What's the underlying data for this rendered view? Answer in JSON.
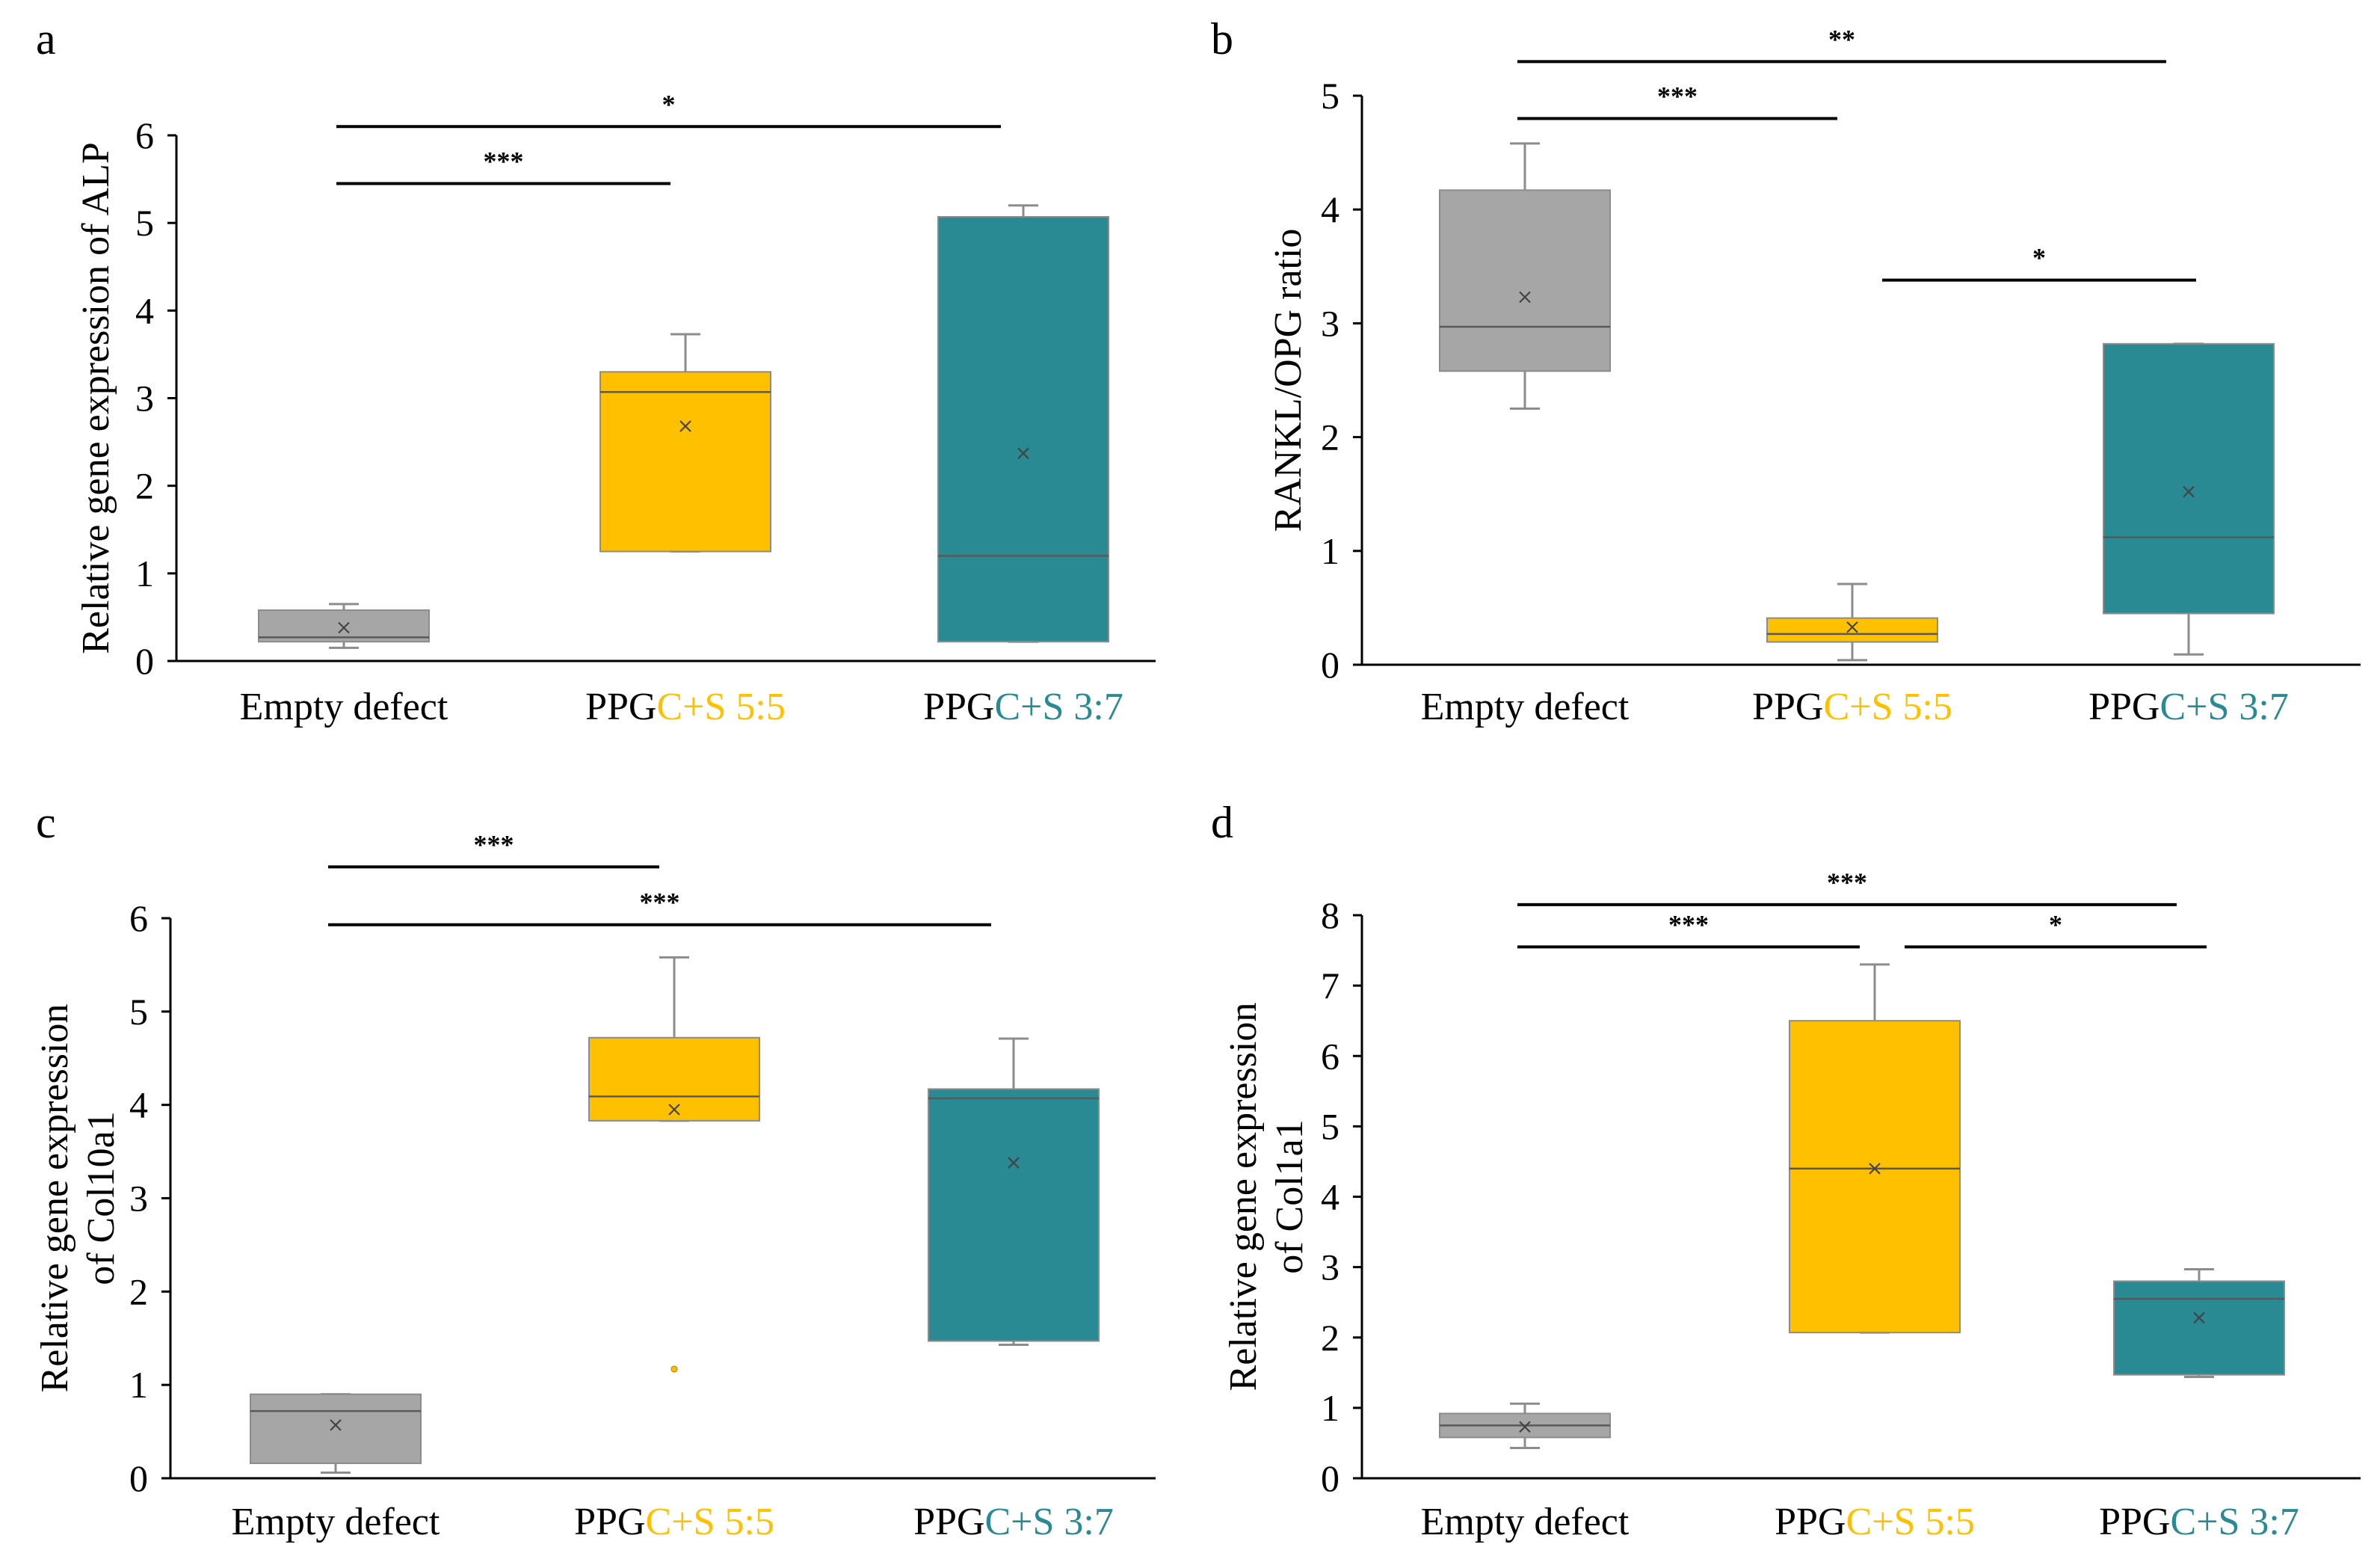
{
  "colors": {
    "empty_defect": "#A6A6A6",
    "ppg_55": "#FFC000",
    "ppg_37": "#298A93",
    "axis": "#000000",
    "whisker": "#8C8C8C",
    "median": "#595959"
  },
  "chart_data": [
    {
      "panel": "a",
      "type": "box",
      "ylabel_lines": [
        "Relative gene expression of ALP"
      ],
      "ylim": [
        0,
        6
      ],
      "yticks": [
        0,
        1,
        2,
        3,
        4,
        5,
        6
      ],
      "categories": [
        {
          "prefix": "Empty defect",
          "suffix": "",
          "color": "empty_defect"
        },
        {
          "prefix": "PPG",
          "suffix": "C+S 5:5",
          "color": "ppg_55"
        },
        {
          "prefix": "PPG",
          "suffix": "C+S 3:7",
          "color": "ppg_37"
        }
      ],
      "boxes": [
        {
          "whisker_low": 0.15,
          "q1": 0.22,
          "median": 0.27,
          "q3": 0.58,
          "whisker_high": 0.65,
          "mean": 0.38
        },
        {
          "whisker_low": 1.25,
          "q1": 1.25,
          "median": 3.07,
          "q3": 3.3,
          "whisker_high": 3.73,
          "mean": 2.68
        },
        {
          "whisker_low": 0.22,
          "q1": 0.22,
          "median": 1.2,
          "q3": 5.07,
          "whisker_high": 5.2,
          "mean": 2.37
        }
      ],
      "outliers": [],
      "significance": [
        {
          "from": 0,
          "to": 1,
          "label": "***",
          "level": 5.45
        },
        {
          "from": 0,
          "to": 2,
          "label": "*",
          "level": 6.1
        }
      ]
    },
    {
      "panel": "b",
      "type": "box",
      "ylabel_lines": [
        "RANKL/OPG ratio"
      ],
      "ylim": [
        0,
        5
      ],
      "yticks": [
        0,
        1,
        2,
        3,
        4,
        5
      ],
      "categories": [
        {
          "prefix": "Empty defect",
          "suffix": "",
          "color": "empty_defect"
        },
        {
          "prefix": "PPG",
          "suffix": "C+S 5:5",
          "color": "ppg_55"
        },
        {
          "prefix": "PPG",
          "suffix": "C+S 3:7",
          "color": "ppg_37"
        }
      ],
      "boxes": [
        {
          "whisker_low": 2.25,
          "q1": 2.58,
          "median": 2.97,
          "q3": 4.17,
          "whisker_high": 4.58,
          "mean": 3.23
        },
        {
          "whisker_low": 0.04,
          "q1": 0.2,
          "median": 0.27,
          "q3": 0.41,
          "whisker_high": 0.71,
          "mean": 0.33
        },
        {
          "whisker_low": 0.09,
          "q1": 0.45,
          "median": 1.12,
          "q3": 2.82,
          "whisker_high": 2.82,
          "mean": 1.52
        }
      ],
      "outliers": [],
      "significance": [
        {
          "from": 0,
          "to": 1,
          "label": "***",
          "level": 4.8
        },
        {
          "from": 0,
          "to": 2,
          "label": "**",
          "level": 5.3
        },
        {
          "from": 1,
          "to": 2,
          "label": "*",
          "level": 3.38
        }
      ]
    },
    {
      "panel": "c",
      "type": "box",
      "ylabel_lines": [
        "Relative gene expression",
        "of Col10a1"
      ],
      "ylim": [
        0,
        6
      ],
      "yticks": [
        0,
        1,
        2,
        3,
        4,
        5,
        6
      ],
      "categories": [
        {
          "prefix": "Empty defect",
          "suffix": "",
          "color": "empty_defect"
        },
        {
          "prefix": "PPG",
          "suffix": "C+S 5:5",
          "color": "ppg_55"
        },
        {
          "prefix": "PPG",
          "suffix": "C+S 3:7",
          "color": "ppg_37"
        }
      ],
      "boxes": [
        {
          "whisker_low": 0.06,
          "q1": 0.16,
          "median": 0.72,
          "q3": 0.9,
          "whisker_high": 0.9,
          "mean": 0.57
        },
        {
          "whisker_low": 3.83,
          "q1": 3.83,
          "median": 4.09,
          "q3": 4.72,
          "whisker_high": 5.58,
          "mean": 3.95
        },
        {
          "whisker_low": 1.43,
          "q1": 1.47,
          "median": 4.07,
          "q3": 4.17,
          "whisker_high": 4.71,
          "mean": 3.38
        }
      ],
      "outliers": [
        {
          "box": 1,
          "value": 1.17
        }
      ],
      "significance": [
        {
          "from": 0,
          "to": 1,
          "label": "***",
          "level": 6.55
        },
        {
          "from": 0,
          "to": 2,
          "label": "***",
          "level": 5.93
        }
      ]
    },
    {
      "panel": "d",
      "type": "box",
      "ylabel_lines": [
        "Relative gene expression",
        "of Col1a1"
      ],
      "ylim": [
        0,
        8
      ],
      "yticks": [
        0,
        1,
        2,
        3,
        4,
        5,
        6,
        7,
        8
      ],
      "categories": [
        {
          "prefix": "Empty defect",
          "suffix": "",
          "color": "empty_defect"
        },
        {
          "prefix": "PPG",
          "suffix": "C+S 5:5",
          "color": "ppg_55"
        },
        {
          "prefix": "PPG",
          "suffix": "C+S 3:7",
          "color": "ppg_37"
        }
      ],
      "boxes": [
        {
          "whisker_low": 0.43,
          "q1": 0.58,
          "median": 0.75,
          "q3": 0.92,
          "whisker_high": 1.06,
          "mean": 0.73
        },
        {
          "whisker_low": 2.07,
          "q1": 2.07,
          "median": 4.4,
          "q3": 6.5,
          "whisker_high": 7.3,
          "mean": 4.4
        },
        {
          "whisker_low": 1.44,
          "q1": 1.47,
          "median": 2.55,
          "q3": 2.8,
          "whisker_high": 2.97,
          "mean": 2.28
        }
      ],
      "outliers": [],
      "significance": [
        {
          "from": 0,
          "to": 2,
          "label": "***",
          "level": 8.15
        },
        {
          "from": 0,
          "to": 1,
          "label": "***",
          "level": 7.55
        },
        {
          "from": 1,
          "to": 2,
          "label": "*",
          "level": 7.55
        }
      ]
    }
  ]
}
